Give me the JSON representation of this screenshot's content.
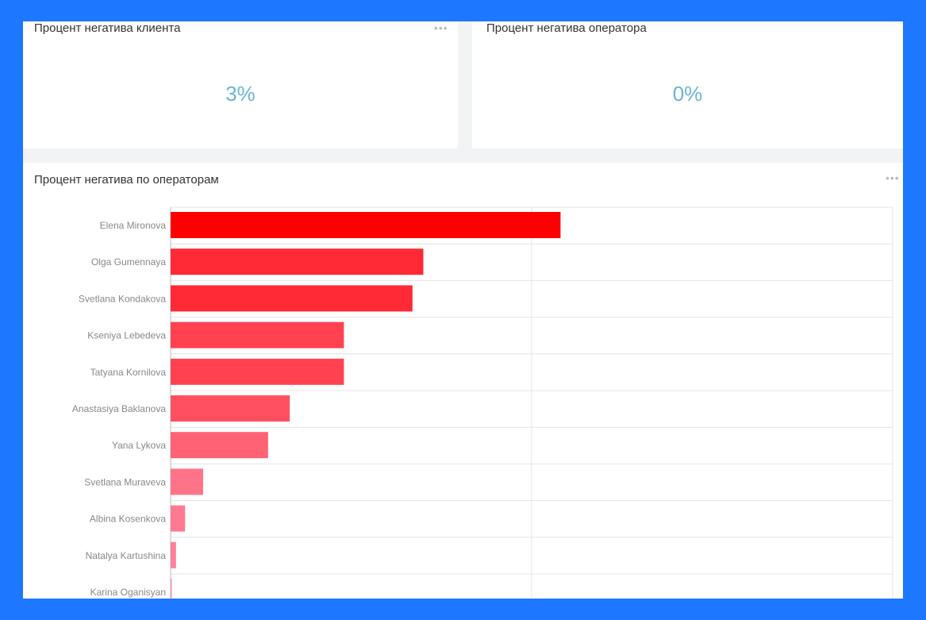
{
  "cards": [
    {
      "title": "Процент негатива клиента",
      "value": "3%"
    },
    {
      "title": "Процент негатива оператора",
      "value": "0%"
    }
  ],
  "chart_panel": {
    "title": "Процент негатива по операторам"
  },
  "chart_data": {
    "type": "bar",
    "orientation": "horizontal",
    "title": "Процент негатива по операторам",
    "categories": [
      "Elena Mironova",
      "Olga Gumennaya",
      "Svetlana Kondakova",
      "Kseniya Lebedeva",
      "Tatyana Kornilova",
      "Anastasiya Baklanova",
      "Yana Lykova",
      "Svetlana Muraveva",
      "Albina Kosenkova",
      "Natalya Kartushina",
      "Karina Oganisyan"
    ],
    "values": [
      1.08,
      0.7,
      0.67,
      0.48,
      0.48,
      0.33,
      0.27,
      0.09,
      0.04,
      0.015,
      0.003
    ],
    "xlim": [
      0,
      2
    ],
    "grid": true,
    "colors": [
      "#ff0000",
      "#ff2a35",
      "#ff2a35",
      "#ff4150",
      "#ff4150",
      "#ff5062",
      "#ff6275",
      "#ff7388",
      "#ff7a90",
      "#ff8099",
      "#ff88a0"
    ]
  },
  "menu_icon": "more-dots-icon"
}
